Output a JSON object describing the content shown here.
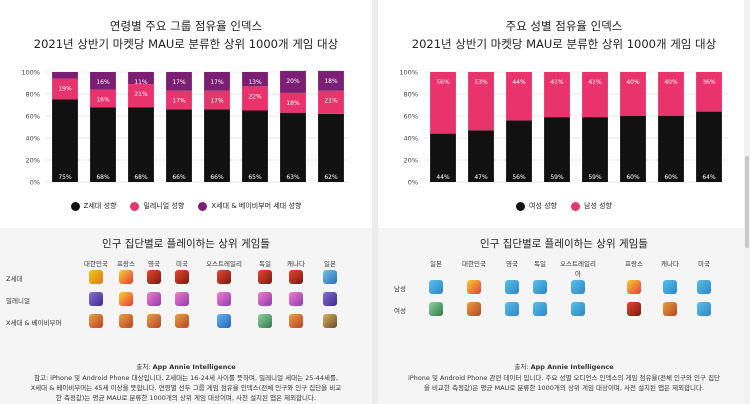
{
  "left": {
    "title_line1": "연령별 주요 그룹 점유율 인덱스",
    "title_line2": "2021년 상반기 마켓당 MAU로 분류한 상위 1000개 게임 대상",
    "legend": [
      {
        "label": "Z세대 성향",
        "color": "#111111"
      },
      {
        "label": "밀레니얼 성향",
        "color": "#e8336d"
      },
      {
        "label": "X세대 & 베이비부머 세대 성향",
        "color": "#7b1f74"
      }
    ],
    "games_title": "인구 집단별로 플레이하는 상위 게임들",
    "columns": [
      "대한민국",
      "프랑스",
      "영국",
      "미국",
      "오스트레일리아",
      "독일",
      "캐나다",
      "일본"
    ],
    "rows": [
      "Z세대",
      "밀레니얼",
      "X세대 & 베이비부머"
    ],
    "source_label": "출처:",
    "source_name": "App Annie Intelligence",
    "note_line1": "참고: iPhone 및 Android Phone 대상입니다. Z세대는 16-24세 사이를 뜻하며, 밀레니얼 세대는 25-44세를,",
    "note_line2": "X세대 & 베이비부머는 45세 이상을 뜻합니다. 연령별 선두 그룹 게임 점유율 인덱스(전체 인구와 인구 집단을 비교",
    "note_line3": "한 측정값)는 평균 MAU로 분류한 1000개의 상위 게임 대상이며, 사전 설치된 앱은 제외합니다."
  },
  "right": {
    "title_line1": "주요 성별 점유율 인덱스",
    "title_line2": "2021년 상반기 마켓당 MAU로 분류한 상위 1000개 게임 대상",
    "legend": [
      {
        "label": "여성 성향",
        "color": "#111111"
      },
      {
        "label": "남성 성향",
        "color": "#e8336d"
      }
    ],
    "games_title": "인구 집단별로 플레이하는 상위 게임들",
    "columns": [
      "일본",
      "대한민국",
      "영국",
      "독일",
      "오스트레일리아",
      "프랑스",
      "캐나다",
      "미국"
    ],
    "rows": [
      "남성",
      "여성"
    ],
    "source_label": "출처:",
    "source_name": "App Annie Intelligence",
    "note_line1": "iPhone 및 Android Phone 관련 데이터 입니다. 주요 성별 오디언스 인덱스의 게임 점유율(전체 인구와 인구 집단",
    "note_line2": "을 비교한 측정값)은 평균 MAU로 분류한 1000개의 상위 게임 대상이며, 사전 설치된 앱은 제외합니다."
  },
  "chart_data": [
    {
      "type": "bar",
      "stacked": true,
      "title": "연령별 주요 그룹 점유율 인덱스",
      "subtitle": "2021년 상반기 마켓당 MAU로 분류한 상위 1000개 게임 대상",
      "categories": [
        "",
        "",
        "",
        "",
        "",
        "",
        "",
        ""
      ],
      "yticks": [
        "0%",
        "20%",
        "40%",
        "60%",
        "80%",
        "100%"
      ],
      "ylim": [
        0,
        100
      ],
      "series": [
        {
          "name": "Z세대 성향",
          "color": "#111111",
          "values": [
            75,
            68,
            68,
            66,
            66,
            65,
            63,
            62
          ]
        },
        {
          "name": "밀레니얼 성향",
          "color": "#e8336d",
          "values": [
            19,
            16,
            21,
            17,
            17,
            22,
            18,
            21
          ]
        },
        {
          "name": "X세대 & 베이비부머 세대 성향",
          "color": "#7b1f74",
          "values": [
            6,
            16,
            11,
            17,
            17,
            13,
            20,
            18
          ]
        }
      ],
      "value_labels": {
        "0": [
          "75%",
          "68%",
          "68%",
          "66%",
          "66%",
          "65%",
          "63%",
          "62%"
        ],
        "1": [
          "19%",
          "16%",
          "21%",
          "17%",
          "17%",
          "22%",
          "18%",
          "21%"
        ],
        "2": [
          "",
          "16%",
          "11%",
          "17%",
          "17%",
          "13%",
          "20%",
          "18%"
        ]
      },
      "legend_position": "bottom",
      "grid": true
    },
    {
      "type": "bar",
      "stacked": true,
      "title": "주요 성별 점유율 인덱스",
      "subtitle": "2021년 상반기 마켓당 MAU로 분류한 상위 1000개 게임 대상",
      "categories": [
        "",
        "",
        "",
        "",
        "",
        "",
        "",
        ""
      ],
      "yticks": [
        "0%",
        "20%",
        "40%",
        "60%",
        "80%",
        "100%"
      ],
      "ylim": [
        0,
        100
      ],
      "series": [
        {
          "name": "여성 성향",
          "color": "#111111",
          "values": [
            44,
            47,
            56,
            59,
            59,
            60,
            60,
            64
          ]
        },
        {
          "name": "남성 성향",
          "color": "#e8336d",
          "values": [
            56,
            53,
            44,
            41,
            41,
            40,
            40,
            36
          ]
        }
      ],
      "value_labels": {
        "0": [
          "44%",
          "47%",
          "56%",
          "59%",
          "59%",
          "60%",
          "60%",
          "64%"
        ],
        "1": [
          "56%",
          "53%",
          "44%",
          "41%",
          "41%",
          "40%",
          "40%",
          "36%"
        ]
      },
      "legend_position": "bottom",
      "grid": true
    }
  ],
  "icons": {
    "left_grid": [
      [
        "bomb-game-icon",
        "brawl-character-icon",
        "among-us-icon",
        "among-us-icon",
        "among-us-icon",
        "among-us-icon",
        "among-us-icon",
        "monster-game-icon"
      ],
      [
        "puzzle-game-icon",
        "brawl-character-icon",
        "candy-puzzle-icon",
        "candy-puzzle-icon",
        "candy-puzzle-icon",
        "candy-puzzle-icon",
        "candy-puzzle-icon",
        "puzzle-game-icon"
      ],
      [
        "card-game-icon",
        "card-game-icon",
        "card-game-icon",
        "card-game-icon",
        "blue-puzzle-icon",
        "character-portrait-icon",
        "card-game-icon",
        "strategy-game-icon"
      ]
    ],
    "right_grid": [
      [
        "pokemon-go-icon",
        "brawl-character-icon",
        "pokemon-go-icon",
        "pokemon-go-icon",
        "pokemon-go-icon",
        "brawl-character-icon",
        "pokemon-go-icon",
        "pokemon-go-icon"
      ],
      [
        "character-portrait-icon",
        "card-game-icon",
        "pokemon-go-icon",
        "pokemon-go-icon",
        "pokemon-go-icon",
        "among-us-icon",
        "card-game-icon",
        "pokemon-go-icon"
      ]
    ]
  }
}
